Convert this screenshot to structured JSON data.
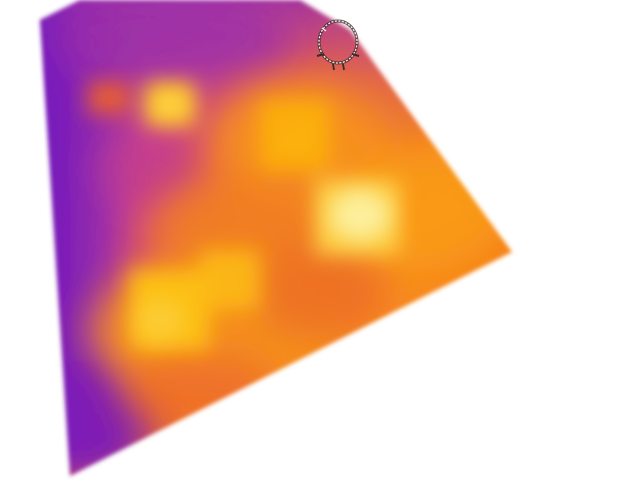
{
  "image": {
    "subject": "thermal-camera-view",
    "palette": "inferno-like",
    "colors": {
      "background": "#ffffff",
      "cold": "#6a12b8",
      "cool": "#a12ea0",
      "mid": "#e0508a",
      "warm": "#f7701a",
      "hot": "#ffb000",
      "hottest": "#fff4a8"
    },
    "hotspot_count": 5,
    "marker": {
      "icon": "crosshair-circle-icon"
    }
  }
}
